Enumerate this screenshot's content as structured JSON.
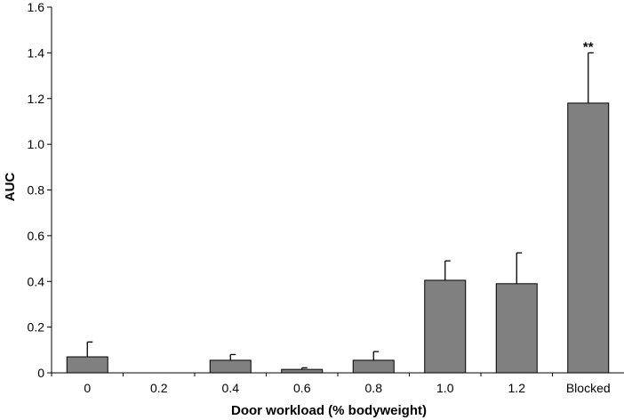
{
  "chart_data": {
    "type": "bar",
    "title": "",
    "xlabel": "Door workload (% bodyweight)",
    "ylabel": "AUC",
    "ylim": [
      0,
      1.6
    ],
    "yticks": [
      "0",
      "0.2",
      "0.4",
      "0.6",
      "0.8",
      "1.0",
      "1.2",
      "1.4",
      "1.6"
    ],
    "ytick_values": [
      0,
      0.2,
      0.4,
      0.6,
      0.8,
      1.0,
      1.2,
      1.4,
      1.6
    ],
    "categories": [
      "0",
      "0.2",
      "0.4",
      "0.6",
      "0.8",
      "1.0",
      "1.2",
      "Blocked"
    ],
    "values": [
      0.07,
      0.0,
      0.055,
      0.015,
      0.055,
      0.405,
      0.39,
      1.18
    ],
    "error_upper": [
      0.135,
      0.0,
      0.08,
      0.022,
      0.093,
      0.49,
      0.525,
      1.4
    ],
    "annotations": [
      {
        "category": "Blocked",
        "text": "**"
      }
    ],
    "grid": false,
    "bar_color": "#808080",
    "colors": {
      "bar": "#808080",
      "edge": "#000000",
      "axis": "#000000"
    }
  }
}
